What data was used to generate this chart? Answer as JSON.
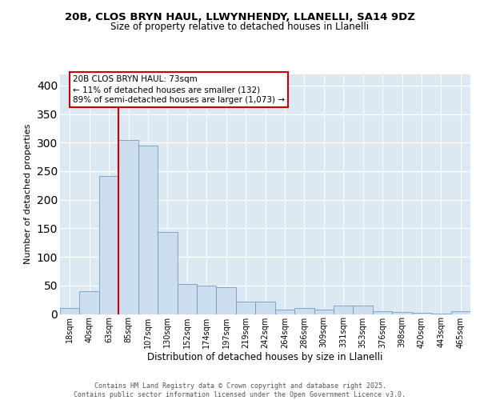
{
  "title1": "20B, CLOS BRYN HAUL, LLWYNHENDY, LLANELLI, SA14 9DZ",
  "title2": "Size of property relative to detached houses in Llanelli",
  "xlabel": "Distribution of detached houses by size in Llanelli",
  "ylabel": "Number of detached properties",
  "categories": [
    "18sqm",
    "40sqm",
    "63sqm",
    "85sqm",
    "107sqm",
    "130sqm",
    "152sqm",
    "174sqm",
    "197sqm",
    "219sqm",
    "242sqm",
    "264sqm",
    "286sqm",
    "309sqm",
    "331sqm",
    "353sqm",
    "376sqm",
    "398sqm",
    "420sqm",
    "443sqm",
    "465sqm"
  ],
  "values": [
    10,
    40,
    242,
    305,
    295,
    143,
    52,
    50,
    47,
    22,
    22,
    8,
    10,
    8,
    15,
    15,
    5,
    3,
    2,
    1,
    5
  ],
  "bar_color": "#ccdded",
  "bar_edge_color": "#6090b8",
  "red_line_x": 2.5,
  "annotation_text": "20B CLOS BRYN HAUL: 73sqm\n← 11% of detached houses are smaller (132)\n89% of semi-detached houses are larger (1,073) →",
  "red_line_color": "#cc0000",
  "bg_color": "#dce8f2",
  "grid_color": "#ffffff",
  "footer_text": "Contains HM Land Registry data © Crown copyright and database right 2025.\nContains public sector information licensed under the Open Government Licence v3.0.",
  "ylim": [
    0,
    420
  ],
  "yticks": [
    0,
    50,
    100,
    150,
    200,
    250,
    300,
    350,
    400
  ]
}
